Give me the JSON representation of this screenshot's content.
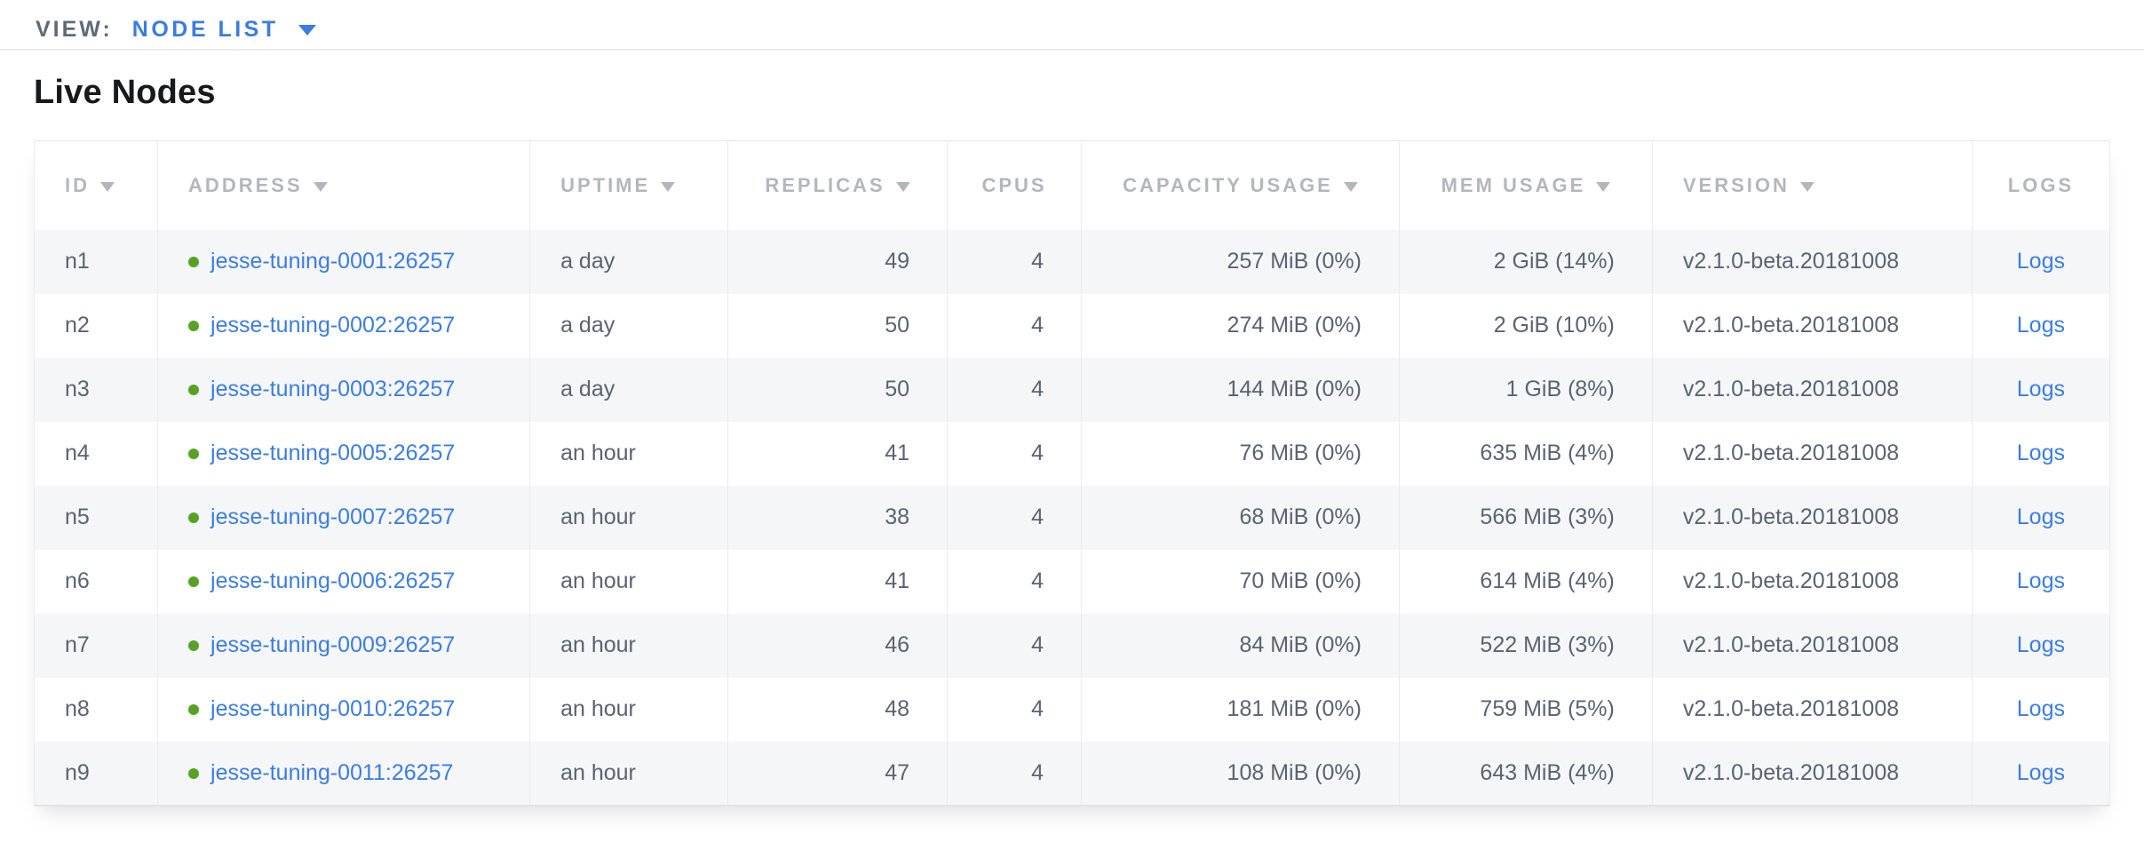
{
  "view_bar": {
    "label": "VIEW:",
    "selected": "NODE LIST"
  },
  "section": {
    "title": "Live Nodes"
  },
  "icons": {
    "sort_arrow": "triangle-down",
    "dropdown_arrow": "triangle-down",
    "live_status": "green-dot"
  },
  "colors": {
    "link_blue": "#3b7de2",
    "live_dot_green": "#57a224",
    "header_gray": "#b3b7bd",
    "body_text": "#5a6372",
    "row_stripe": "#f5f6f7",
    "title_black": "#17191d"
  },
  "table": {
    "columns": [
      {
        "label": "ID",
        "sortable": true
      },
      {
        "label": "ADDRESS",
        "sortable": true
      },
      {
        "label": "UPTIME",
        "sortable": true
      },
      {
        "label": "REPLICAS",
        "sortable": true
      },
      {
        "label": "CPUS",
        "sortable": false
      },
      {
        "label": "CAPACITY USAGE",
        "sortable": true
      },
      {
        "label": "MEM USAGE",
        "sortable": true
      },
      {
        "label": "VERSION",
        "sortable": true
      },
      {
        "label": "LOGS",
        "sortable": false
      }
    ],
    "rows": [
      {
        "id": "n1",
        "address": "jesse-tuning-0001:26257",
        "uptime": "a day",
        "replicas": "49",
        "cpus": "4",
        "capacity": "257 MiB (0%)",
        "mem": "2 GiB (14%)",
        "version": "v2.1.0-beta.20181008",
        "logs": "Logs"
      },
      {
        "id": "n2",
        "address": "jesse-tuning-0002:26257",
        "uptime": "a day",
        "replicas": "50",
        "cpus": "4",
        "capacity": "274 MiB (0%)",
        "mem": "2 GiB (10%)",
        "version": "v2.1.0-beta.20181008",
        "logs": "Logs"
      },
      {
        "id": "n3",
        "address": "jesse-tuning-0003:26257",
        "uptime": "a day",
        "replicas": "50",
        "cpus": "4",
        "capacity": "144 MiB (0%)",
        "mem": "1 GiB (8%)",
        "version": "v2.1.0-beta.20181008",
        "logs": "Logs"
      },
      {
        "id": "n4",
        "address": "jesse-tuning-0005:26257",
        "uptime": "an hour",
        "replicas": "41",
        "cpus": "4",
        "capacity": "76 MiB (0%)",
        "mem": "635 MiB (4%)",
        "version": "v2.1.0-beta.20181008",
        "logs": "Logs"
      },
      {
        "id": "n5",
        "address": "jesse-tuning-0007:26257",
        "uptime": "an hour",
        "replicas": "38",
        "cpus": "4",
        "capacity": "68 MiB (0%)",
        "mem": "566 MiB (3%)",
        "version": "v2.1.0-beta.20181008",
        "logs": "Logs"
      },
      {
        "id": "n6",
        "address": "jesse-tuning-0006:26257",
        "uptime": "an hour",
        "replicas": "41",
        "cpus": "4",
        "capacity": "70 MiB (0%)",
        "mem": "614 MiB (4%)",
        "version": "v2.1.0-beta.20181008",
        "logs": "Logs"
      },
      {
        "id": "n7",
        "address": "jesse-tuning-0009:26257",
        "uptime": "an hour",
        "replicas": "46",
        "cpus": "4",
        "capacity": "84 MiB (0%)",
        "mem": "522 MiB (3%)",
        "version": "v2.1.0-beta.20181008",
        "logs": "Logs"
      },
      {
        "id": "n8",
        "address": "jesse-tuning-0010:26257",
        "uptime": "an hour",
        "replicas": "48",
        "cpus": "4",
        "capacity": "181 MiB (0%)",
        "mem": "759 MiB (5%)",
        "version": "v2.1.0-beta.20181008",
        "logs": "Logs"
      },
      {
        "id": "n9",
        "address": "jesse-tuning-0011:26257",
        "uptime": "an hour",
        "replicas": "47",
        "cpus": "4",
        "capacity": "108 MiB (0%)",
        "mem": "643 MiB (4%)",
        "version": "v2.1.0-beta.20181008",
        "logs": "Logs"
      }
    ]
  }
}
